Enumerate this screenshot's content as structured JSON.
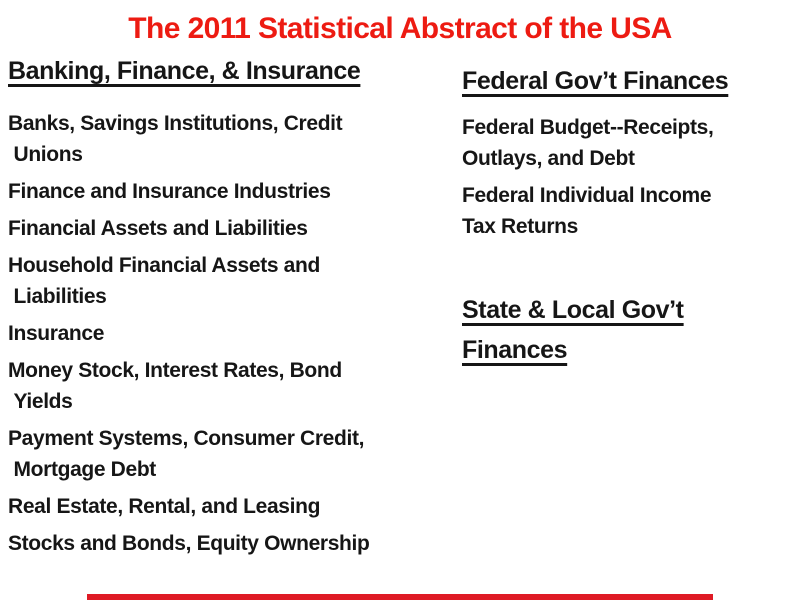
{
  "page": {
    "background": "#FFFFFF",
    "accent_red": "#ED1B12"
  },
  "title": "The 2011 Statistical Abstract of the USA",
  "left_column": {
    "heading": "Banking, Finance, & Insurance",
    "items": [
      "Banks, Savings Institutions, Credit\n Unions",
      "Finance and Insurance Industries",
      "Financial Assets and Liabilities",
      "Household Financial Assets and\n Liabilities",
      "Insurance",
      "Money Stock, Interest Rates, Bond\n Yields",
      "Payment Systems, Consumer Credit,\n Mortgage Debt",
      "Real Estate, Rental, and Leasing",
      "Stocks and Bonds, Equity Ownership"
    ]
  },
  "right_column": {
    "sections": [
      {
        "heading": "Federal Gov’t Finances",
        "items": [
          "Federal Budget--Receipts,\nOutlays, and Debt",
          "Federal Individual Income\nTax Returns"
        ]
      },
      {
        "heading": "State & Local Gov’t\nFinances",
        "items": []
      }
    ]
  },
  "footer": {
    "red_bar_color": "#DF1A25"
  }
}
